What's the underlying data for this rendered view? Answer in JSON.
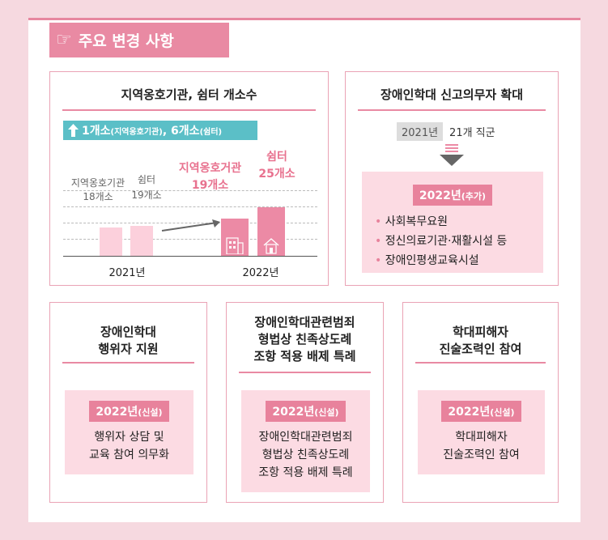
{
  "section_title": "주요 변경 사항",
  "box1": {
    "title": "지역옹호기관, 쉼터 개소수",
    "increase_main": "1개소",
    "increase_sub1": "(지역옹호기관)",
    "increase_mid": ", 6개소",
    "increase_sub2": "(쉼터)",
    "y2021_label1": "지역옹호기관",
    "y2021_label1b": "18개소",
    "y2021_label2": "쉼터",
    "y2021_label2b": "19개소",
    "y2022_label1": "지역옹호거관",
    "y2022_label1b": "19개소",
    "y2022_label2": "쉼터",
    "y2022_label2b": "25개소",
    "x_2021": "2021년",
    "x_2022": "2022년"
  },
  "chart_data": {
    "type": "bar",
    "categories": [
      "2021년",
      "2022년"
    ],
    "series": [
      {
        "name": "지역옹호기관",
        "values": [
          18,
          19
        ]
      },
      {
        "name": "쉼터",
        "values": [
          19,
          25
        ]
      }
    ]
  },
  "box2": {
    "title": "장애인학대 신고의무자 확대",
    "year": "2021년",
    "year_text": "21개 직군",
    "badge_year": "2022년",
    "badge_sub": "(추가)",
    "items": [
      "사회복무요원",
      "정신의료기관·재활시설 등",
      "장애인평생교육시설"
    ]
  },
  "box3": {
    "title_line1": "장애인학대",
    "title_line2": "행위자 지원",
    "badge_year": "2022년",
    "badge_sub": "(신설)",
    "text_line1": "행위자 상담 및",
    "text_line2": "교육 참여 의무화"
  },
  "box4": {
    "title_line1": "장애인학대관련범죄",
    "title_line2": "형법상 친족상도례",
    "title_line3": "조항 적용 배제 특례",
    "badge_year": "2022년",
    "badge_sub": "(신설)",
    "text_line1": "장애인학대관련범죄",
    "text_line2": "형법상 친족상도례",
    "text_line3": "조항 적용 배제 특례"
  },
  "box5": {
    "title_line1": "학대피해자",
    "title_line2": "진술조력인 참여",
    "badge_year": "2022년",
    "badge_sub": "(신설)",
    "text_line1": "학대피해자",
    "text_line2": "진술조력인 참여"
  }
}
